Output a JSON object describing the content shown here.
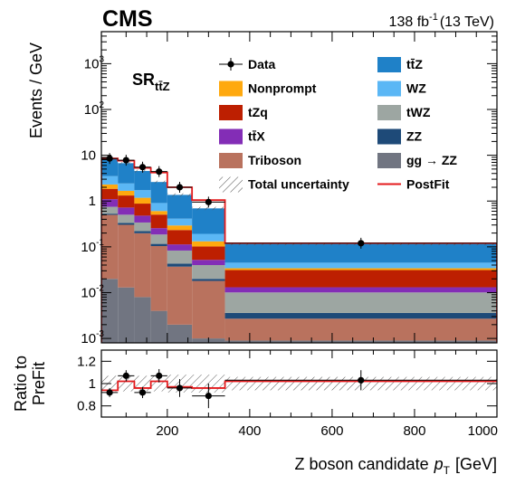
{
  "header": {
    "experiment": "CMS",
    "lumi": "138 fb",
    "lumi_exp": "-1",
    "energy": "(13 TeV)"
  },
  "region": {
    "label": "SR",
    "sub": "tt̄Z"
  },
  "chart_data": [
    {
      "type": "bar",
      "stacked": true,
      "log_y": true,
      "ylabel": "Events / GeV",
      "ylim": [
        0.0008,
        5000
      ],
      "xlim": [
        40,
        1000
      ],
      "bin_edges": [
        40,
        80,
        120,
        160,
        200,
        260,
        340,
        1000
      ],
      "y_tick_values": [
        0.001,
        0.01,
        0.1,
        1,
        10,
        100,
        1000
      ],
      "y_tick_labels": [
        {
          "base": "10",
          "exp": "-3"
        },
        {
          "base": "10",
          "exp": "-2"
        },
        {
          "base": "10",
          "exp": "-1"
        },
        {
          "base": "1",
          "exp": ""
        },
        {
          "base": "10",
          "exp": ""
        },
        {
          "base": "10",
          "exp": "2"
        },
        {
          "base": "10",
          "exp": "3"
        }
      ],
      "series": [
        {
          "name": "gg → ZZ",
          "key": "ggzz",
          "color": "#717581",
          "values": [
            0.02,
            0.013,
            0.008,
            0.004,
            0.002,
            0.001,
            0.0009
          ]
        },
        {
          "name": "Triboson",
          "key": "triboson",
          "color": "#b9725e",
          "values": [
            0.48,
            0.29,
            0.19,
            0.1,
            0.035,
            0.017,
            0.0018
          ]
        },
        {
          "name": "ZZ",
          "key": "zz",
          "color": "#1e4a78",
          "values": [
            0.03,
            0.03,
            0.022,
            0.012,
            0.006,
            0.002,
            0.0009
          ]
        },
        {
          "name": "tWZ",
          "key": "twz",
          "color": "#9da6a2",
          "values": [
            0.22,
            0.17,
            0.12,
            0.07,
            0.04,
            0.02,
            0.0065
          ]
        },
        {
          "name": "tt̄X",
          "key": "ttx",
          "color": "#832db6",
          "values": [
            0.35,
            0.22,
            0.14,
            0.07,
            0.03,
            0.012,
            0.003
          ]
        },
        {
          "name": "tZq",
          "key": "tzq",
          "color": "#bd1f01",
          "values": [
            0.75,
            0.6,
            0.4,
            0.25,
            0.12,
            0.05,
            0.018
          ]
        },
        {
          "name": "Nonprompt",
          "key": "nonprompt",
          "color": "#ffa90e",
          "values": [
            0.45,
            0.35,
            0.3,
            0.1,
            0.06,
            0.03,
            0.003
          ]
        },
        {
          "name": "WZ",
          "key": "wz",
          "color": "#5bb7f5",
          "values": [
            1.2,
            0.75,
            0.55,
            0.3,
            0.12,
            0.06,
            0.011
          ]
        },
        {
          "name": "tt̄Z",
          "key": "ttz",
          "color": "#1f81c8",
          "values": [
            5.0,
            4.3,
            2.8,
            1.7,
            0.95,
            0.5,
            0.07
          ]
        }
      ],
      "postfit": {
        "name": "PostFit",
        "color": "#e41a1c",
        "values": [
          8.5,
          7.6,
          5.3,
          4.2,
          2.0,
          1.05,
          0.12
        ]
      },
      "data": {
        "name": "Data",
        "x": [
          60,
          100,
          140,
          180,
          230,
          300,
          670
        ],
        "y": [
          8.5,
          7.8,
          5.5,
          4.4,
          2.0,
          0.95,
          0.12
        ]
      },
      "uncertainty": {
        "name": "Total uncertainty",
        "rel": [
          0.07,
          0.07,
          0.07,
          0.07,
          0.08,
          0.08,
          0.06
        ]
      }
    },
    {
      "type": "line",
      "xlabel": "Z boson candidate",
      "xlabel_symbol": "p",
      "xlabel_sub": "T",
      "xlabel_unit": "[GeV]",
      "ylabel": "Ratio to PreFit",
      "ylabel_lines": [
        "Ratio to",
        "PreFit"
      ],
      "ylim": [
        0.7,
        1.3
      ],
      "y_tick_values": [
        0.8,
        1,
        1.2
      ],
      "y_tick_labels": [
        "0.8",
        "1",
        "1.2"
      ],
      "x_tick_values": [
        200,
        400,
        600,
        800,
        1000
      ],
      "x_tick_labels": [
        "200",
        "400",
        "600",
        "800",
        "1000"
      ],
      "postfit_ratio": [
        0.94,
        1.02,
        0.96,
        1.02,
        0.97,
        0.96,
        1.02
      ],
      "data_x": [
        60,
        100,
        140,
        180,
        230,
        300,
        670
      ],
      "data_y": [
        0.92,
        1.07,
        0.92,
        1.07,
        0.96,
        0.89,
        1.03
      ],
      "data_err": [
        0.04,
        0.05,
        0.05,
        0.06,
        0.08,
        0.11,
        0.09
      ],
      "band_rel": [
        0.07,
        0.07,
        0.07,
        0.07,
        0.08,
        0.08,
        0.06
      ]
    }
  ],
  "legend": {
    "left": [
      {
        "label": "Data",
        "kind": "marker"
      },
      {
        "label": "Nonprompt",
        "kind": "box",
        "color": "#ffa90e"
      },
      {
        "label": "tZq",
        "kind": "box",
        "color": "#bd1f01"
      },
      {
        "label": "tt̄X",
        "kind": "box",
        "color": "#832db6"
      },
      {
        "label": "Triboson",
        "kind": "box",
        "color": "#b9725e"
      },
      {
        "label": "Total uncertainty",
        "kind": "hatch"
      }
    ],
    "right": [
      {
        "label": "tt̄Z",
        "kind": "box",
        "color": "#1f81c8"
      },
      {
        "label": "WZ",
        "kind": "box",
        "color": "#5bb7f5"
      },
      {
        "label": "tWZ",
        "kind": "box",
        "color": "#9da6a2"
      },
      {
        "label": "ZZ",
        "kind": "box",
        "color": "#1e4a78"
      },
      {
        "label": "gg → ZZ",
        "kind": "box",
        "color": "#717581"
      },
      {
        "label": "PostFit",
        "kind": "line",
        "color": "#e41a1c"
      }
    ]
  }
}
